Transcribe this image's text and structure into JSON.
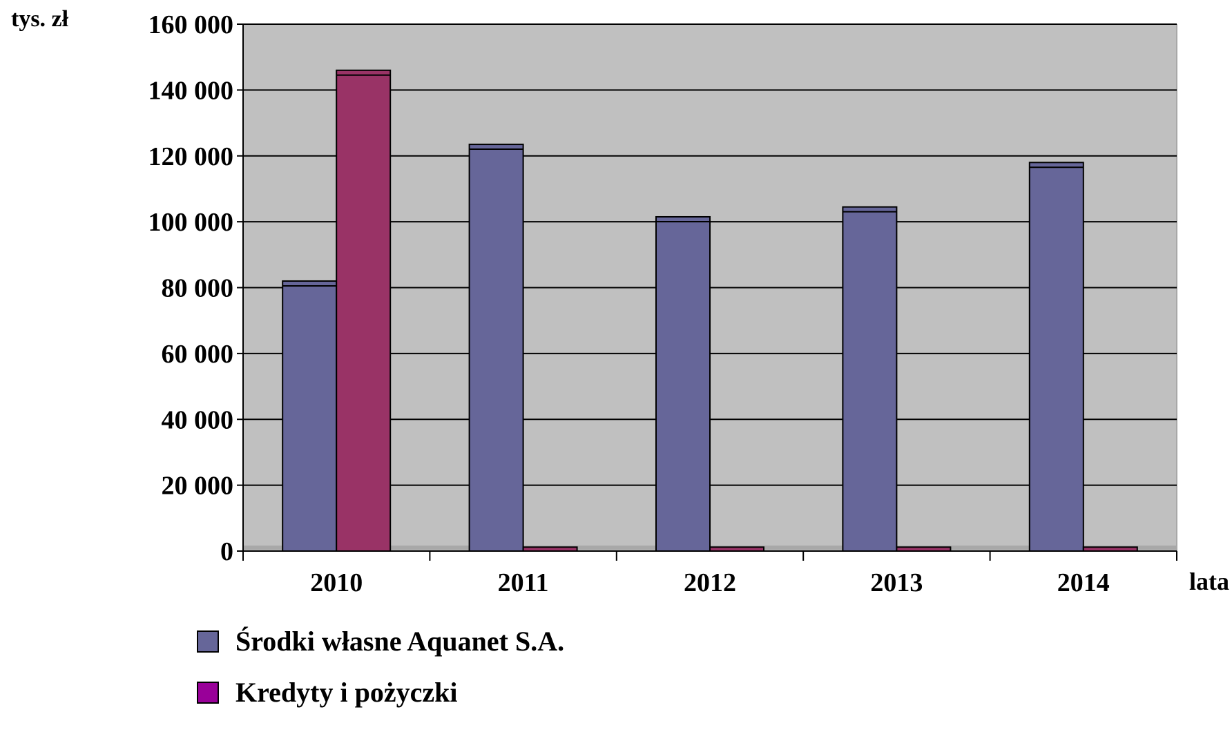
{
  "chart_data": {
    "type": "bar",
    "title": "",
    "ylabel": "tys. zł",
    "xlabel": "lata",
    "categories": [
      "2010",
      "2011",
      "2012",
      "2013",
      "2014"
    ],
    "series": [
      {
        "name": "Środki własne Aquanet S.A.",
        "color": "#666699",
        "values": [
          82000,
          123500,
          101500,
          104500,
          118000
        ]
      },
      {
        "name": "Kredyty i pożyczki",
        "color": "#993366",
        "legend_color": "#990099",
        "values": [
          146000,
          1200,
          1200,
          1200,
          1200
        ]
      }
    ],
    "ylim": [
      0,
      160000
    ],
    "yticks": [
      {
        "value": 0,
        "label": "0"
      },
      {
        "value": 20000,
        "label": "20 000"
      },
      {
        "value": 40000,
        "label": "40 000"
      },
      {
        "value": 60000,
        "label": "60 000"
      },
      {
        "value": 80000,
        "label": "80 000"
      },
      {
        "value": 100000,
        "label": "100 000"
      },
      {
        "value": 120000,
        "label": "120 000"
      },
      {
        "value": 140000,
        "label": "140 000"
      },
      {
        "value": 160000,
        "label": "160 000"
      }
    ],
    "grid": true,
    "plot_background": "#c0c0c0",
    "legend_position": "bottom-left"
  }
}
